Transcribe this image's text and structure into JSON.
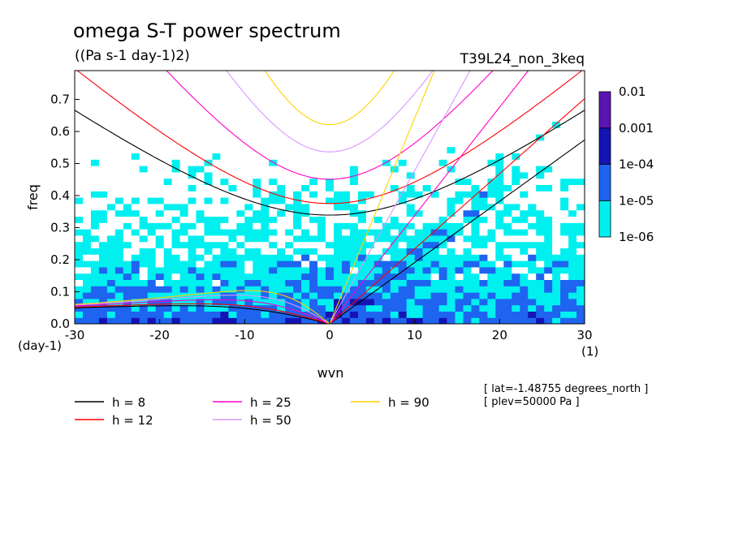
{
  "chart_data": {
    "type": "heatmap",
    "title": "omega S-T power spectrum",
    "subtitle": "((Pa s-1 day-1)2)",
    "run_label": "T39L24_non_3keq",
    "xlabel": "wvn",
    "ylabel": "freq",
    "x_unit_label": "(1)",
    "y_unit_label": "(day-1)",
    "xlim": [
      -30,
      30
    ],
    "ylim": [
      0,
      0.79
    ],
    "x_ticks": [
      -30,
      -20,
      -10,
      0,
      10,
      20,
      30
    ],
    "x_tick_labels": [
      "-30",
      "-20",
      "-10",
      "0",
      "10",
      "20",
      "30"
    ],
    "y_ticks": [
      0,
      0.1,
      0.2,
      0.3,
      0.4,
      0.5,
      0.6,
      0.7
    ],
    "y_tick_labels": [
      "0.0",
      "0.1",
      "0.2",
      "0.3",
      "0.4",
      "0.5",
      "0.6",
      "0.7"
    ],
    "colorbar": {
      "levels": [
        "1e-06",
        "1e-05",
        "1e-04",
        "0.001",
        "0.01"
      ],
      "colors": [
        "#ffffff",
        "#00f0f0",
        "#1e64f0",
        "#1414b4",
        "#5a14b4"
      ],
      "scale": "log"
    },
    "dispersion_curves": [
      {
        "name": "h =  8",
        "h": 8,
        "color": "#000000"
      },
      {
        "name": "h = 12",
        "h": 12,
        "color": "#ff0000"
      },
      {
        "name": "h = 25",
        "h": 25,
        "color": "#ff00c8"
      },
      {
        "name": "h = 50",
        "h": 50,
        "color": "#dc96ff"
      },
      {
        "name": "h = 90",
        "h": 90,
        "color": "#ffd200"
      }
    ],
    "annotations": [
      "[ lat=-1.48755 degrees_north ]",
      "[ plev=50000 Pa ]"
    ],
    "grid": false,
    "legend_position": "bottom-left"
  }
}
